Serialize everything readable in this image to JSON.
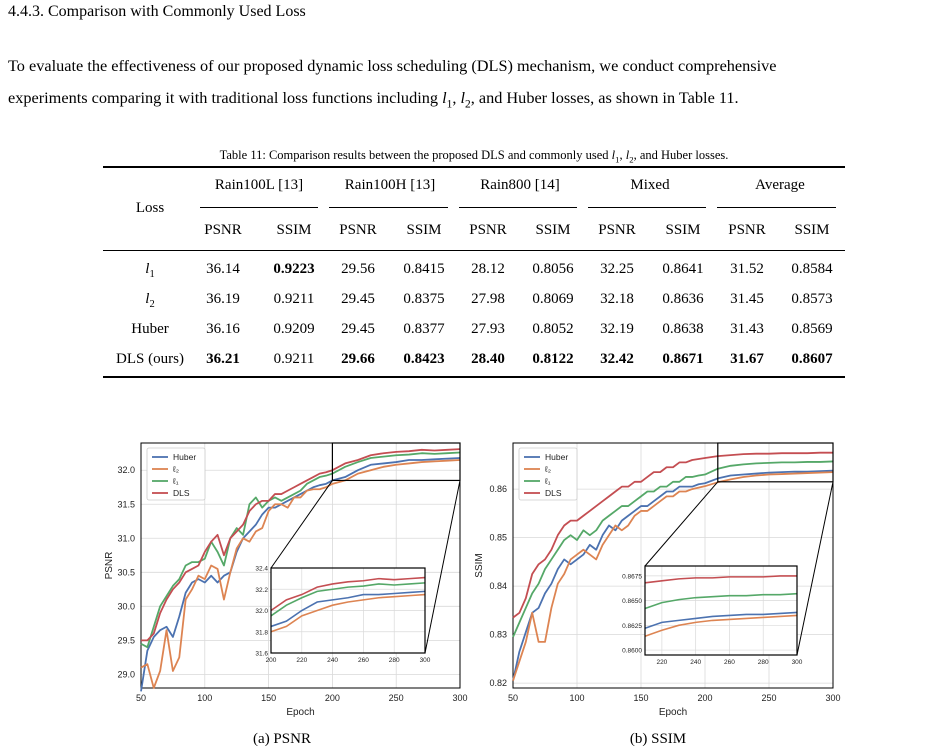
{
  "section": {
    "heading": "4.4.3. Comparison with Commonly Used Loss"
  },
  "paragraph": {
    "part1": "To evaluate the effectiveness of our proposed dynamic loss scheduling (DLS) mechanism, we conduct comprehensive",
    "part2": "experiments comparing it with traditional loss functions including ",
    "l1": "l",
    "l1_sub": "1",
    "sep1": ", ",
    "l2": "l",
    "l2_sub": "2",
    "part3": ", and Huber losses, as shown in Table 11."
  },
  "table": {
    "caption_pre": "Table 11: Comparison results between the proposed DLS and commonly used ",
    "caption_l1": "l",
    "caption_l1_sub": "1",
    "caption_sep": ", ",
    "caption_l2": "l",
    "caption_l2_sub": "2",
    "caption_post": ", and Huber losses.",
    "loss_header": "Loss",
    "groups": [
      "Rain100L [13]",
      "Rain100H [13]",
      "Rain800 [14]",
      "Mixed",
      "Average"
    ],
    "metrics": [
      "PSNR",
      "SSIM",
      "PSNR",
      "SSIM",
      "PSNR",
      "SSIM",
      "PSNR",
      "SSIM",
      "PSNR",
      "SSIM"
    ],
    "rows": [
      {
        "loss": "l",
        "loss_sub": "1",
        "values": [
          "36.14",
          "0.9223",
          "29.56",
          "0.8415",
          "28.12",
          "0.8056",
          "32.25",
          "0.8641",
          "31.52",
          "0.8584"
        ],
        "bold": [
          false,
          true,
          false,
          false,
          false,
          false,
          false,
          false,
          false,
          false
        ]
      },
      {
        "loss": "l",
        "loss_sub": "2",
        "values": [
          "36.19",
          "0.9211",
          "29.45",
          "0.8375",
          "27.98",
          "0.8069",
          "32.18",
          "0.8636",
          "31.45",
          "0.8573"
        ],
        "bold": [
          false,
          false,
          false,
          false,
          false,
          false,
          false,
          false,
          false,
          false
        ]
      },
      {
        "loss": "Huber",
        "loss_sub": "",
        "values": [
          "36.16",
          "0.9209",
          "29.45",
          "0.8377",
          "27.93",
          "0.8052",
          "32.19",
          "0.8638",
          "31.43",
          "0.8569"
        ],
        "bold": [
          false,
          false,
          false,
          false,
          false,
          false,
          false,
          false,
          false,
          false
        ]
      },
      {
        "loss": "DLS (ours)",
        "loss_sub": "",
        "values": [
          "36.21",
          "0.9211",
          "29.66",
          "0.8423",
          "28.40",
          "0.8122",
          "32.42",
          "0.8671",
          "31.67",
          "0.8607"
        ],
        "bold": [
          true,
          false,
          true,
          true,
          true,
          true,
          true,
          true,
          true,
          true
        ]
      }
    ]
  },
  "chart_data": [
    {
      "type": "line",
      "caption": "(a) PSNR",
      "xlabel": "Epoch",
      "ylabel": "PSNR",
      "xlim": [
        50,
        300
      ],
      "ylim": [
        28.8,
        32.4
      ],
      "xticks": [
        50,
        100,
        150,
        200,
        250,
        300
      ],
      "yticks": [
        29.0,
        29.5,
        30.0,
        30.5,
        31.0,
        31.5,
        32.0
      ],
      "ytick_labels": [
        "29.0",
        "29.5",
        "30.0",
        "30.5",
        "31.0",
        "31.5",
        "32.0"
      ],
      "grid": true,
      "legend": "top-left",
      "series": [
        {
          "name": "Huber",
          "color": "#4c72b0",
          "x": [
            50,
            55,
            60,
            65,
            70,
            75,
            80,
            85,
            90,
            95,
            100,
            105,
            110,
            115,
            120,
            125,
            130,
            135,
            140,
            145,
            150,
            155,
            160,
            165,
            170,
            175,
            180,
            185,
            190,
            195,
            200,
            210,
            220,
            230,
            240,
            250,
            260,
            270,
            280,
            290,
            300
          ],
          "y": [
            28.75,
            29.35,
            29.55,
            29.65,
            29.7,
            29.55,
            29.85,
            30.2,
            30.35,
            30.4,
            30.35,
            30.45,
            30.35,
            30.45,
            30.5,
            30.8,
            31.0,
            31.1,
            31.2,
            31.35,
            31.45,
            31.45,
            31.5,
            31.55,
            31.6,
            31.65,
            31.7,
            31.75,
            31.78,
            31.8,
            31.85,
            31.9,
            32.0,
            32.08,
            32.1,
            32.12,
            32.15,
            32.15,
            32.16,
            32.17,
            32.18
          ]
        },
        {
          "name": "ℓ₂",
          "color": "#dd8452",
          "x": [
            50,
            55,
            60,
            65,
            70,
            75,
            80,
            85,
            90,
            95,
            100,
            105,
            110,
            115,
            120,
            125,
            130,
            135,
            140,
            145,
            150,
            155,
            160,
            165,
            170,
            175,
            180,
            185,
            190,
            195,
            200,
            210,
            220,
            230,
            240,
            250,
            260,
            270,
            280,
            290,
            300
          ],
          "y": [
            29.1,
            29.15,
            28.8,
            29.05,
            29.65,
            29.05,
            29.25,
            30.1,
            30.25,
            30.45,
            30.4,
            30.6,
            30.55,
            30.1,
            30.5,
            30.85,
            31.0,
            30.95,
            31.1,
            31.15,
            31.4,
            31.5,
            31.5,
            31.45,
            31.6,
            31.6,
            31.7,
            31.72,
            31.72,
            31.75,
            31.8,
            31.85,
            31.95,
            32.0,
            32.05,
            32.08,
            32.1,
            32.12,
            32.13,
            32.14,
            32.15
          ]
        },
        {
          "name": "ℓ₁",
          "color": "#55a868",
          "x": [
            50,
            55,
            60,
            65,
            70,
            75,
            80,
            85,
            90,
            95,
            100,
            105,
            110,
            115,
            120,
            125,
            130,
            135,
            140,
            145,
            150,
            155,
            160,
            165,
            170,
            175,
            180,
            185,
            190,
            195,
            200,
            210,
            220,
            230,
            240,
            250,
            260,
            270,
            280,
            290,
            300
          ],
          "y": [
            29.45,
            29.4,
            29.7,
            30.0,
            30.15,
            30.3,
            30.4,
            30.6,
            30.65,
            30.65,
            30.7,
            30.95,
            30.8,
            30.6,
            31.0,
            31.15,
            31.05,
            31.5,
            31.6,
            31.45,
            31.55,
            31.6,
            31.55,
            31.6,
            31.65,
            31.7,
            31.8,
            31.85,
            31.9,
            31.92,
            31.95,
            32.05,
            32.12,
            32.18,
            32.2,
            32.22,
            32.23,
            32.25,
            32.24,
            32.25,
            32.26
          ]
        },
        {
          "name": "DLS",
          "color": "#c44e52",
          "x": [
            50,
            55,
            60,
            65,
            70,
            75,
            80,
            85,
            90,
            95,
            100,
            105,
            110,
            115,
            120,
            125,
            130,
            135,
            140,
            145,
            150,
            155,
            160,
            165,
            170,
            175,
            180,
            185,
            190,
            195,
            200,
            210,
            220,
            230,
            240,
            250,
            260,
            270,
            280,
            290,
            300
          ],
          "y": [
            29.5,
            29.5,
            29.6,
            29.9,
            30.1,
            30.25,
            30.35,
            30.5,
            30.55,
            30.6,
            30.8,
            30.95,
            31.05,
            30.75,
            31.0,
            31.1,
            31.2,
            31.4,
            31.5,
            31.55,
            31.55,
            31.65,
            31.65,
            31.7,
            31.75,
            31.8,
            31.85,
            31.9,
            31.95,
            31.97,
            32.0,
            32.1,
            32.15,
            32.22,
            32.25,
            32.27,
            32.28,
            32.3,
            32.29,
            32.3,
            32.31
          ]
        }
      ],
      "inset": {
        "xlim": [
          200,
          300
        ],
        "ylim": [
          31.6,
          32.4
        ],
        "xticks": [
          200,
          220,
          240,
          260,
          280,
          300
        ],
        "yticks": [
          31.6,
          31.8,
          32.0,
          32.2,
          32.4
        ],
        "ytick_labels": [
          "31.6",
          "31.8",
          "32.0",
          "32.2",
          "32.4"
        ]
      }
    },
    {
      "type": "line",
      "caption": "(b) SSIM",
      "xlabel": "Epoch",
      "ylabel": "SSIM",
      "xlim": [
        50,
        300
      ],
      "ylim": [
        0.819,
        0.8695
      ],
      "xticks": [
        50,
        100,
        150,
        200,
        250,
        300
      ],
      "yticks": [
        0.82,
        0.83,
        0.84,
        0.85,
        0.86
      ],
      "ytick_labels": [
        "0.82",
        "0.83",
        "0.84",
        "0.85",
        "0.86"
      ],
      "grid": true,
      "legend": "top-left",
      "series": [
        {
          "name": "Huber",
          "color": "#4c72b0",
          "x": [
            50,
            55,
            60,
            65,
            70,
            75,
            80,
            85,
            90,
            95,
            100,
            105,
            110,
            115,
            120,
            125,
            130,
            135,
            140,
            145,
            150,
            155,
            160,
            165,
            170,
            175,
            180,
            185,
            190,
            195,
            200,
            210,
            220,
            230,
            240,
            250,
            260,
            270,
            280,
            290,
            300
          ],
          "y": [
            0.8205,
            0.8265,
            0.8305,
            0.8345,
            0.8355,
            0.8385,
            0.8405,
            0.8435,
            0.8455,
            0.8445,
            0.8455,
            0.8465,
            0.8485,
            0.8475,
            0.8505,
            0.8525,
            0.8515,
            0.8535,
            0.8545,
            0.8555,
            0.8565,
            0.8565,
            0.8575,
            0.8585,
            0.8595,
            0.8595,
            0.8605,
            0.8605,
            0.8605,
            0.861,
            0.8612,
            0.8622,
            0.8628,
            0.863,
            0.8632,
            0.8634,
            0.8635,
            0.8636,
            0.8636,
            0.8637,
            0.8638
          ]
        },
        {
          "name": "ℓ₂",
          "color": "#dd8452",
          "x": [
            50,
            55,
            60,
            65,
            70,
            75,
            80,
            85,
            90,
            95,
            100,
            105,
            110,
            115,
            120,
            125,
            130,
            135,
            140,
            145,
            150,
            155,
            160,
            165,
            170,
            175,
            180,
            185,
            190,
            195,
            200,
            210,
            220,
            230,
            240,
            250,
            260,
            270,
            280,
            290,
            300
          ],
          "y": [
            0.8205,
            0.8245,
            0.8285,
            0.8345,
            0.8285,
            0.8285,
            0.8355,
            0.8405,
            0.8425,
            0.8455,
            0.8465,
            0.8475,
            0.8465,
            0.8455,
            0.8485,
            0.8505,
            0.8525,
            0.8515,
            0.8525,
            0.8545,
            0.8555,
            0.8555,
            0.8565,
            0.8575,
            0.8585,
            0.8585,
            0.8595,
            0.8595,
            0.86,
            0.8603,
            0.8606,
            0.8614,
            0.862,
            0.8625,
            0.8628,
            0.863,
            0.8631,
            0.8632,
            0.8633,
            0.8634,
            0.8635
          ]
        },
        {
          "name": "ℓ₁",
          "color": "#55a868",
          "x": [
            50,
            55,
            60,
            65,
            70,
            75,
            80,
            85,
            90,
            95,
            100,
            105,
            110,
            115,
            120,
            125,
            130,
            135,
            140,
            145,
            150,
            155,
            160,
            165,
            170,
            175,
            180,
            185,
            190,
            195,
            200,
            210,
            220,
            230,
            240,
            250,
            260,
            270,
            280,
            290,
            300
          ],
          "y": [
            0.8295,
            0.8325,
            0.8355,
            0.8385,
            0.8405,
            0.8435,
            0.8455,
            0.8475,
            0.8495,
            0.8505,
            0.8495,
            0.8515,
            0.8505,
            0.8515,
            0.8535,
            0.8545,
            0.8555,
            0.8565,
            0.8565,
            0.8575,
            0.8585,
            0.8595,
            0.8595,
            0.8605,
            0.8605,
            0.8615,
            0.8615,
            0.8625,
            0.8625,
            0.8628,
            0.863,
            0.8642,
            0.8648,
            0.8651,
            0.8653,
            0.8654,
            0.8655,
            0.8655,
            0.8656,
            0.8656,
            0.8657
          ]
        },
        {
          "name": "DLS",
          "color": "#c44e52",
          "x": [
            50,
            55,
            60,
            65,
            70,
            75,
            80,
            85,
            90,
            95,
            100,
            105,
            110,
            115,
            120,
            125,
            130,
            135,
            140,
            145,
            150,
            155,
            160,
            165,
            170,
            175,
            180,
            185,
            190,
            195,
            200,
            210,
            220,
            230,
            240,
            250,
            260,
            270,
            280,
            290,
            300
          ],
          "y": [
            0.8335,
            0.8345,
            0.8375,
            0.8425,
            0.8445,
            0.8455,
            0.8475,
            0.8505,
            0.8525,
            0.8535,
            0.8535,
            0.8545,
            0.8555,
            0.8565,
            0.8575,
            0.8585,
            0.8595,
            0.8605,
            0.8605,
            0.8615,
            0.8615,
            0.8625,
            0.8635,
            0.8635,
            0.8645,
            0.8645,
            0.8655,
            0.8655,
            0.866,
            0.8662,
            0.8664,
            0.8668,
            0.867,
            0.8672,
            0.8673,
            0.8673,
            0.8674,
            0.8674,
            0.8674,
            0.8675,
            0.8675
          ]
        }
      ],
      "inset": {
        "xlim": [
          210,
          300
        ],
        "ylim": [
          0.8595,
          0.8685
        ],
        "xticks": [
          220,
          240,
          260,
          280,
          300
        ],
        "yticks": [
          0.86,
          0.8625,
          0.865,
          0.8675
        ],
        "ytick_labels": [
          "0.8600",
          "0.8625",
          "0.8650",
          "0.8675"
        ]
      }
    }
  ]
}
